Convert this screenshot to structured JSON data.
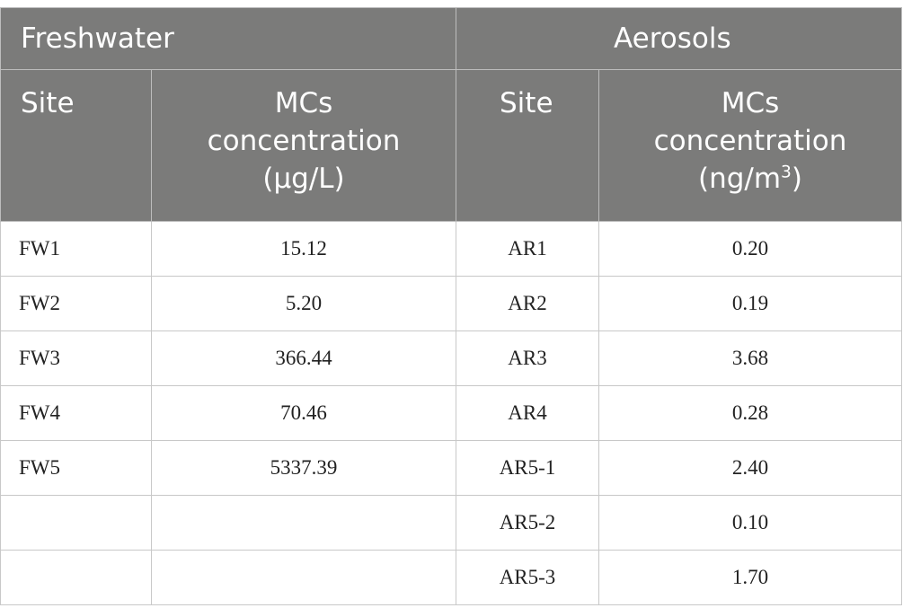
{
  "headers": {
    "group_left": "Freshwater",
    "group_right": "Aerosols",
    "site": "Site",
    "conc_line1": "MCs",
    "conc_line2": "concentration",
    "fw_unit": "(μg/L)",
    "ar_unit_base": "(ng/m",
    "ar_unit_sup": "3",
    "ar_unit_end": ")"
  },
  "rows": [
    {
      "fw_site": "FW1",
      "fw_conc": "15.12",
      "ar_site": "AR1",
      "ar_conc": "0.20"
    },
    {
      "fw_site": "FW2",
      "fw_conc": "5.20",
      "ar_site": "AR2",
      "ar_conc": "0.19"
    },
    {
      "fw_site": "FW3",
      "fw_conc": "366.44",
      "ar_site": "AR3",
      "ar_conc": "3.68"
    },
    {
      "fw_site": "FW4",
      "fw_conc": "70.46",
      "ar_site": "AR4",
      "ar_conc": "0.28"
    },
    {
      "fw_site": "FW5",
      "fw_conc": "5337.39",
      "ar_site": "AR5-1",
      "ar_conc": "2.40"
    },
    {
      "fw_site": "",
      "fw_conc": "",
      "ar_site": "AR5-2",
      "ar_conc": "0.10"
    },
    {
      "fw_site": "",
      "fw_conc": "",
      "ar_site": "AR5-3",
      "ar_conc": "1.70"
    }
  ]
}
